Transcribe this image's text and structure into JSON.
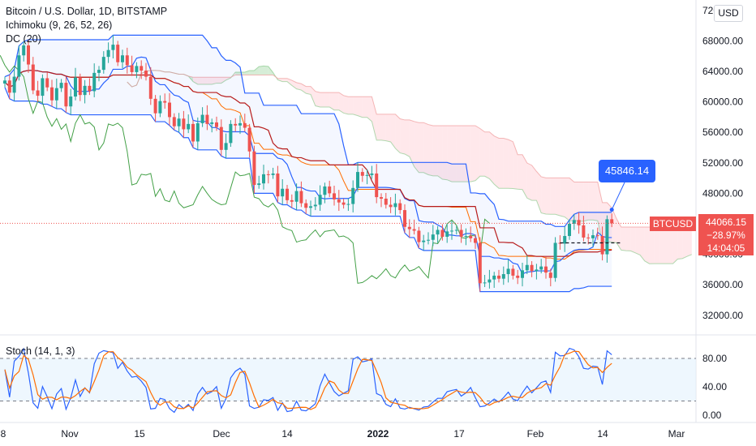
{
  "header": {
    "title": "Bitcoin / U.S. Dollar, 1D, BITSTAMP",
    "indicator_1": "Ichimoku (9, 26, 52, 26)",
    "indicator_2": "DC (20)",
    "currency": "USD"
  },
  "price_axis": {
    "ticks": [
      "72000.00",
      "68000.00",
      "64000.00",
      "60000.00",
      "56000.00",
      "52000.00",
      "48000.00",
      "44000.00",
      "40000.00",
      "36000.00",
      "32000.00"
    ],
    "tick_values": [
      72000,
      68000,
      64000,
      60000,
      56000,
      52000,
      48000,
      44000,
      40000,
      36000,
      32000
    ]
  },
  "stoch_panel": {
    "label": "Stoch (14, 1, 3)",
    "ticks": [
      "80.00",
      "40.00",
      "0.00"
    ],
    "tick_values": [
      80,
      40,
      0
    ]
  },
  "time_axis": {
    "labels": [
      "8",
      "Nov",
      "15",
      "Dec",
      "14",
      "2022",
      "17",
      "Feb",
      "14",
      "Mar"
    ]
  },
  "current_price": {
    "ticker": "BTCUSD",
    "price": "44066.15",
    "change": "−28.97%",
    "countdown": "14:04:05"
  },
  "callout": {
    "value": "45846.14"
  },
  "colors": {
    "up": "#26a69a",
    "down": "#ef5350",
    "tenkan": "#2962ff",
    "kijun": "#b71c1c",
    "cloud_bull": "#a5d6a7",
    "cloud_bear": "#ffcdd2",
    "donchian": "#2962ff",
    "stoch_k": "#2962ff",
    "stoch_d": "#ff6d00",
    "stoch_band": "#e3f2fd"
  },
  "chart_data": {
    "type": "candlestick",
    "title": "Bitcoin / U.S. Dollar, 1D, BITSTAMP",
    "ylim": [
      30000,
      73000
    ],
    "indicators": [
      "Ichimoku (9, 26, 52, 26)",
      "DC (20)",
      "Stoch (14, 1, 3)"
    ],
    "x_ticks": [
      "8",
      "Nov",
      "15",
      "Dec",
      "14",
      "2022",
      "17",
      "Feb",
      "14",
      "Mar"
    ],
    "close": [
      62800,
      61200,
      63300,
      66100,
      67400,
      64900,
      61500,
      60800,
      63100,
      61900,
      60200,
      61800,
      62500,
      59400,
      60700,
      63200,
      60900,
      62100,
      61400,
      63800,
      64200,
      65900,
      66800,
      67500,
      65200,
      66100,
      64800,
      63900,
      64700,
      64100,
      63300,
      60400,
      58500,
      60100,
      59900,
      58000,
      56800,
      57800,
      56400,
      57100,
      54800,
      57200,
      58300,
      57100,
      57300,
      56700,
      53700,
      54600,
      57100,
      56900,
      57200,
      56600,
      53500,
      49100,
      49300,
      50500,
      50400,
      50600,
      47600,
      48600,
      47100,
      46900,
      48300,
      46700,
      46100,
      46300,
      46500,
      47800,
      48900,
      48000,
      47200,
      46800,
      46500,
      46600,
      48700,
      50800,
      50300,
      50400,
      50600,
      47500,
      47300,
      46500,
      46200,
      46700,
      45800,
      43600,
      43300,
      43100,
      41600,
      41800,
      41900,
      42600,
      43200,
      42300,
      43000,
      43100,
      43200,
      42300,
      42400,
      42100,
      41500,
      36200,
      36300,
      36700,
      37200,
      36800,
      37400,
      38100,
      37200,
      36900,
      37900,
      38600,
      37800,
      38000,
      38400,
      37600,
      36900,
      41500,
      41400,
      42400,
      44000,
      44500,
      43800,
      42200,
      42100,
      42500,
      42400,
      40000,
      44600,
      44066
    ],
    "donchian": {
      "upper": 68000,
      "lower": 32900,
      "note": "20-period channel"
    },
    "stoch_k_last": 85,
    "stoch_bands": [
      20,
      80
    ],
    "last_price": 44066.15,
    "change_pct": -28.97,
    "annotation": 45846.14
  }
}
